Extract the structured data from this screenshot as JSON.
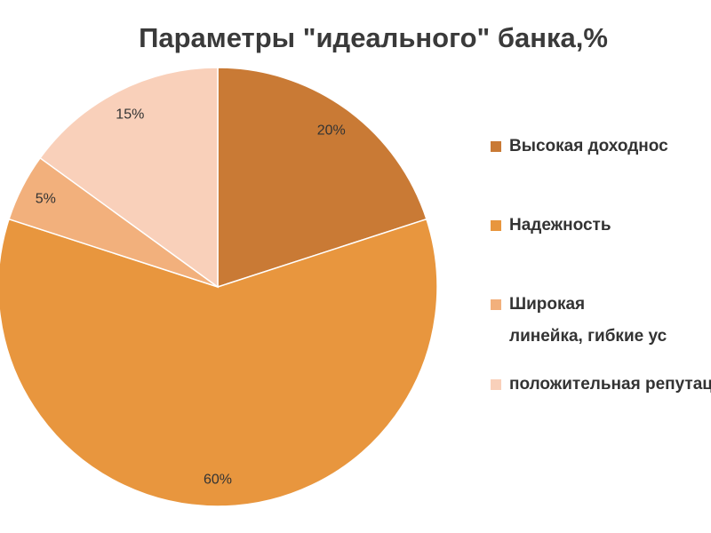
{
  "chart_data": {
    "type": "pie",
    "title": "Параметры \"идеального\" банка,%",
    "categories": [
      "Высокая доходнос",
      "Надежность",
      "Широкая линейка, гибкие ус",
      "положительная репутация"
    ],
    "values": [
      20,
      60,
      5,
      15
    ],
    "value_labels": [
      "20%",
      "60%",
      "5%",
      "15%"
    ],
    "colors": [
      "#c97a35",
      "#e8963e",
      "#f2b07c",
      "#f9d0ba"
    ],
    "legend": "right"
  }
}
